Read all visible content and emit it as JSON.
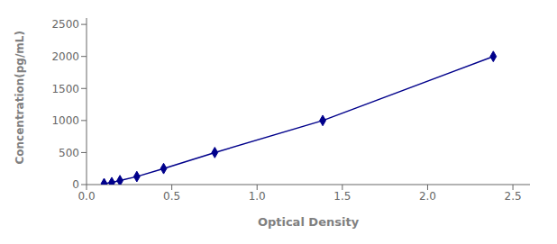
{
  "chart_data": {
    "type": "line",
    "x": [
      0.103,
      0.148,
      0.196,
      0.295,
      0.452,
      0.752,
      1.385,
      2.385
    ],
    "values": [
      15,
      31,
      62,
      125,
      250,
      500,
      1000,
      2000
    ],
    "color": "#00008B",
    "marker": "diamond",
    "xlabel": "Optical Density",
    "ylabel": "Concentration(pg/mL)",
    "xlim": [
      0.0,
      2.6
    ],
    "ylim": [
      0,
      2600
    ],
    "xticks": [
      {
        "value": 0.0,
        "label": "0.0"
      },
      0.5,
      {
        "value": 1.0,
        "label": "1.0"
      },
      1.5,
      {
        "value": 2.0,
        "label": "2.0"
      },
      2.5
    ],
    "yticks": [
      0,
      500,
      1000,
      1500,
      2000,
      2500
    ],
    "grid": false
  }
}
